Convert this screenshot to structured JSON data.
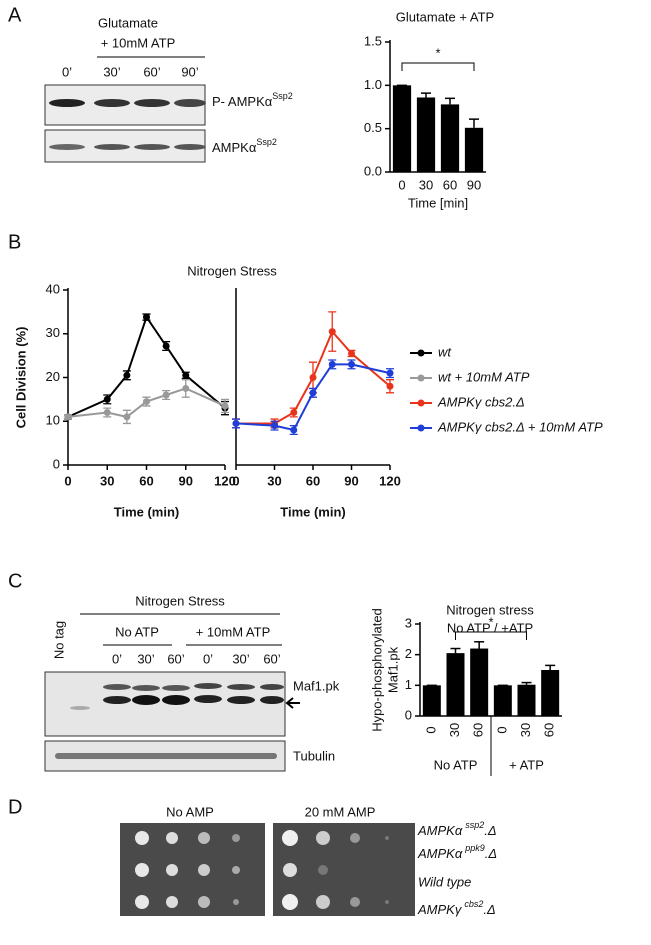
{
  "figure": {
    "panel_labels": [
      "A",
      "B",
      "C",
      "D"
    ],
    "panel_a": {
      "treatment": [
        "Glutamate",
        "+ 10mM ATP"
      ],
      "lanes": [
        "0’",
        "30’",
        "60’",
        "90’"
      ],
      "blots": [
        {
          "text": "P- AMPKα",
          "sup": "Ssp2"
        },
        {
          "text": "AMPKα",
          "sup": "Ssp2"
        }
      ]
    },
    "panel_c": {
      "heading": "Nitrogen Stress",
      "control": "No tag",
      "groups": [
        "No ATP",
        "+ 10mM ATP"
      ],
      "lanes": [
        "0’",
        "30’",
        "60’",
        "0’",
        "30’",
        "60’"
      ],
      "blots": [
        "Maf1.pk",
        "Tubulin"
      ]
    },
    "panel_d": {
      "conditions": [
        "No AMP",
        "20 mM AMP"
      ],
      "strains": [
        {
          "text": "AMPKα",
          "sup": "ssp2",
          "end": ".Δ"
        },
        {
          "text": "AMPKα",
          "sup": "ppk9",
          "end": ".Δ"
        },
        {
          "text": "Wild type"
        },
        {
          "text": "AMPKγ",
          "sup": "cbs2",
          "end": ".Δ"
        }
      ]
    }
  },
  "chart_data": [
    {
      "type": "bar",
      "title": "Glutamate + ATP",
      "x_label": "Time [min]",
      "categories": [
        "0",
        "30",
        "60",
        "90"
      ],
      "values": [
        1.0,
        0.86,
        0.78,
        0.51
      ],
      "errors": [
        0,
        0.05,
        0.07,
        0.1
      ],
      "color": "#000000",
      "ylim": [
        0,
        1.5
      ],
      "yticks": [
        {
          "value": 0,
          "label": "0.0"
        },
        0.5,
        {
          "value": 1,
          "label": "1.0"
        },
        {
          "value": 1.5,
          "label": "1.5"
        }
      ],
      "annotation": "*"
    },
    {
      "type": "line",
      "title": "Nitrogen Stress",
      "y_label": "Cell Division (%)",
      "x_label": "Time (min)",
      "x": [
        0,
        30,
        45,
        60,
        75,
        90,
        120
      ],
      "xlim": [
        0,
        120
      ],
      "xticks": [
        0,
        30,
        60,
        90,
        120
      ],
      "ylim": [
        0,
        40
      ],
      "yticks": [
        0,
        10,
        20,
        30,
        40
      ],
      "series": [
        {
          "name": "wt",
          "color": "#000000",
          "values": [
            11,
            15,
            20.5,
            33.8,
            27.2,
            20.5,
            13
          ],
          "errors": [
            0.5,
            1,
            1,
            0.7,
            1,
            0.7,
            1.5
          ]
        },
        {
          "name": "wt + 10mM ATP",
          "color": "#999999",
          "values": [
            11,
            12,
            11,
            14.5,
            16,
            17.5,
            13.5
          ],
          "errors": [
            0.5,
            1,
            1.5,
            1,
            1,
            2,
            1.5
          ]
        }
      ]
    },
    {
      "type": "line",
      "x_label": "Time (min)",
      "x": [
        0,
        30,
        45,
        60,
        75,
        90,
        120
      ],
      "xlim": [
        0,
        120
      ],
      "xticks": [
        0,
        30,
        60,
        90,
        120
      ],
      "ylim": [
        0,
        40
      ],
      "series": [
        {
          "name": "AMPKγ cbs2.Δ",
          "color": "#e8341c",
          "values": [
            9.5,
            9.5,
            12,
            20,
            30.5,
            25.5,
            18
          ],
          "errors": [
            1,
            1,
            1,
            3.5,
            4.5,
            0.7,
            1.5
          ]
        },
        {
          "name": "AMPKγ cbs2.Δ + 10mM ATP",
          "color": "#1f3fd6",
          "values": [
            9.5,
            9,
            8,
            16.5,
            23,
            23,
            21
          ],
          "errors": [
            1,
            1,
            1,
            1,
            1,
            1,
            1
          ]
        }
      ]
    },
    {
      "type": "bar",
      "title": "Nitrogen stress",
      "subtitle": "No ATP / +ATP",
      "y_label": [
        "Hypo-phosphorylated",
        "Maf1.pk"
      ],
      "categories": [
        "0",
        "30",
        "60",
        "0",
        "30",
        "60"
      ],
      "values": [
        1,
        2.05,
        2.2,
        1,
        1.02,
        1.5
      ],
      "errors": [
        0,
        0.15,
        0.22,
        0,
        0.07,
        0.15
      ],
      "color": "#000000",
      "ylim": [
        0,
        3
      ],
      "yticks": [
        0,
        1,
        2,
        3
      ],
      "group_labels": [
        "No ATP",
        "+ ATP"
      ],
      "annotation": "*"
    }
  ]
}
